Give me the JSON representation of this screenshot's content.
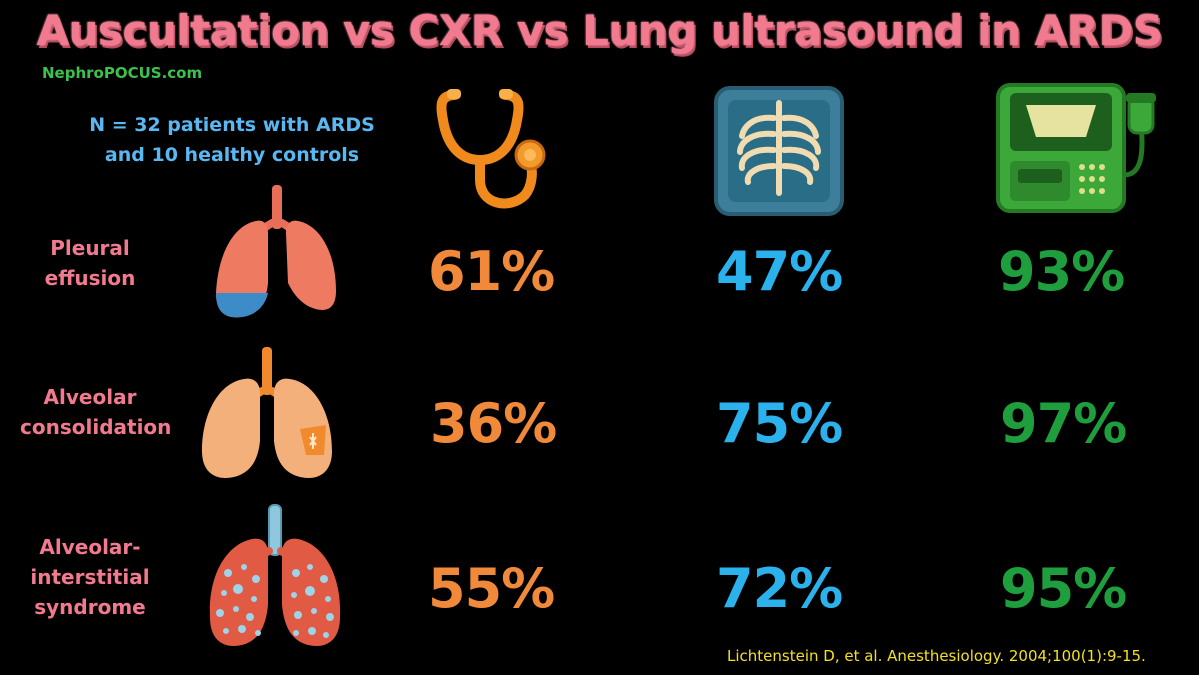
{
  "title": "Auscultation vs CXR vs Lung ultrasound in ARDS",
  "brand": "NephroPOCUS.com",
  "cohort": {
    "line1": "N = 32 patients with ARDS",
    "line2": "and 10 healthy controls"
  },
  "columns": [
    {
      "name": "Auscultation",
      "icon": "stethoscope-icon",
      "color": "#f08a3a"
    },
    {
      "name": "CXR",
      "icon": "chest-xray-icon",
      "color": "#2bb2ec"
    },
    {
      "name": "Lung ultrasound",
      "icon": "ultrasound-machine-icon",
      "color": "#1f9e3e"
    }
  ],
  "rows": [
    {
      "label_lines": [
        "Pleural",
        "effusion"
      ],
      "icon": "lungs-pleural-effusion-icon",
      "auscultation": "61%",
      "cxr": "47%",
      "ultrasound": "93%"
    },
    {
      "label_lines": [
        "Alveolar",
        "consolidation"
      ],
      "icon": "lungs-consolidation-icon",
      "auscultation": "36%",
      "cxr": "75%",
      "ultrasound": "97%"
    },
    {
      "label_lines": [
        "Alveolar-",
        "interstitial",
        "syndrome"
      ],
      "icon": "lungs-interstitial-syndrome-icon",
      "auscultation": "55%",
      "cxr": "72%",
      "ultrasound": "95%"
    }
  ],
  "citation": "Lichtenstein D, et al. Anesthesiology. 2004;100(1):9-15."
}
